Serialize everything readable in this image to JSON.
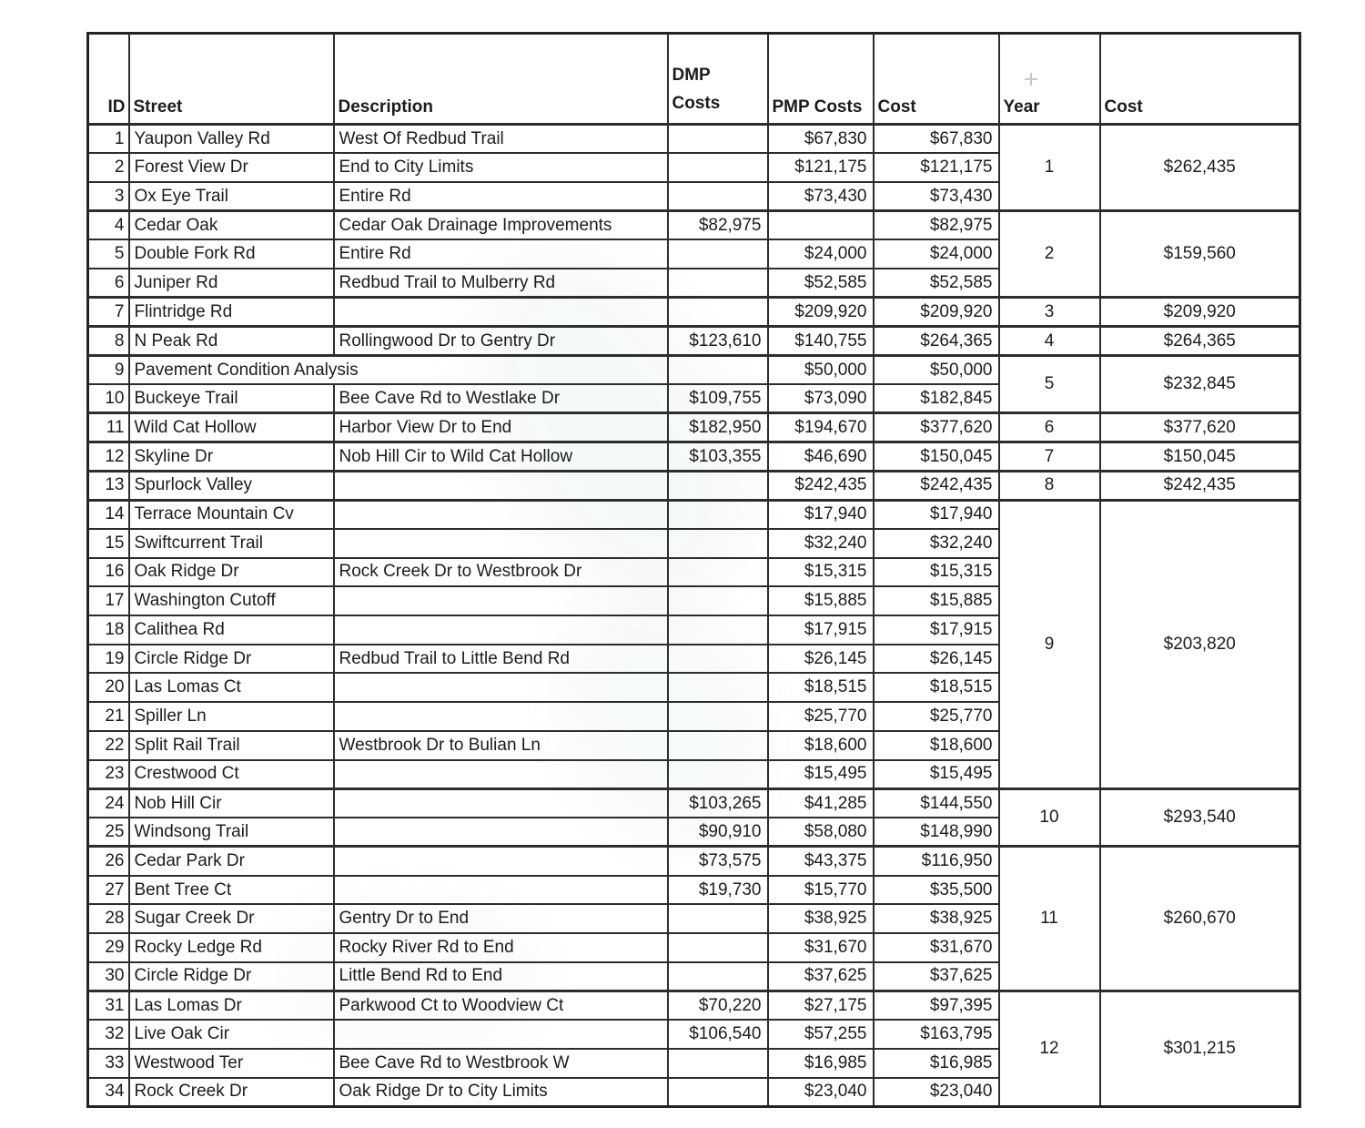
{
  "colors": {
    "background": "#ffffff",
    "border": "#2d2d2d",
    "text": "#1c1c1c",
    "faded_text": "#8f9193"
  },
  "table": {
    "headers": {
      "id": "ID",
      "street": "Street",
      "description": "Description",
      "dmp": "DMP Costs",
      "pmp": "PMP Costs",
      "cost": "Cost",
      "year": "Year",
      "year_cost": "Cost"
    },
    "rows": [
      {
        "id": 1,
        "street": "Yaupon Valley Rd",
        "description": "West Of Redbud Trail",
        "dmp": "",
        "pmp": "$67,830",
        "cost": "$67,830"
      },
      {
        "id": 2,
        "street": "Forest View Dr",
        "description": "End to City Limits",
        "dmp": "",
        "pmp": "$121,175",
        "cost": "$121,175"
      },
      {
        "id": 3,
        "street": "Ox Eye Trail",
        "description": "Entire Rd",
        "dmp": "",
        "pmp": "$73,430",
        "cost": "$73,430"
      },
      {
        "id": 4,
        "street": "Cedar Oak",
        "description": "Cedar Oak Drainage Improvements",
        "dmp": "$82,975",
        "pmp": "",
        "cost": "$82,975"
      },
      {
        "id": 5,
        "street": "Double Fork Rd",
        "description": "Entire Rd",
        "dmp": "",
        "pmp": "$24,000",
        "cost": "$24,000",
        "pmp_faded": true
      },
      {
        "id": 6,
        "street": "Juniper Rd",
        "description": "Redbud Trail to Mulberry Rd",
        "dmp": "",
        "pmp": "$52,585",
        "cost": "$52,585"
      },
      {
        "id": 7,
        "street": "Flintridge Rd",
        "description": "",
        "dmp": "",
        "pmp": "$209,920",
        "cost": "$209,920"
      },
      {
        "id": 8,
        "street": "N Peak Rd",
        "description": "Rollingwood Dr to Gentry Dr",
        "dmp": "$123,610",
        "pmp": "$140,755",
        "cost": "$264,365"
      },
      {
        "id": 9,
        "street": "Pavement Condition Analysis",
        "description": "",
        "dmp": "",
        "pmp": "$50,000",
        "cost": "$50,000",
        "merged": true
      },
      {
        "id": 10,
        "street": "Buckeye Trail",
        "description": "Bee Cave Rd to Westlake Dr",
        "dmp": "$109,755",
        "pmp": "$73,090",
        "cost": "$182,845"
      },
      {
        "id": 11,
        "street": "Wild Cat Hollow",
        "description": "Harbor View Dr to End",
        "dmp": "$182,950",
        "pmp": "$194,670",
        "cost": "$377,620",
        "dmp_faded": true
      },
      {
        "id": 12,
        "street": "Skyline Dr",
        "description": "Nob Hill Cir to Wild Cat Hollow",
        "dmp": "$103,355",
        "pmp": "$46,690",
        "cost": "$150,045"
      },
      {
        "id": 13,
        "street": "Spurlock Valley",
        "description": "",
        "dmp": "",
        "pmp": "$242,435",
        "cost": "$242,435"
      },
      {
        "id": 14,
        "street": "Terrace Mountain Cv",
        "description": "",
        "dmp": "",
        "pmp": "$17,940",
        "cost": "$17,940"
      },
      {
        "id": 15,
        "street": "Swiftcurrent Trail",
        "description": "",
        "dmp": "",
        "pmp": "$32,240",
        "cost": "$32,240"
      },
      {
        "id": 16,
        "street": "Oak Ridge Dr",
        "description": "Rock Creek Dr to Westbrook Dr",
        "dmp": "",
        "pmp": "$15,315",
        "cost": "$15,315"
      },
      {
        "id": 17,
        "street": "Washington Cutoff",
        "description": "",
        "dmp": "",
        "pmp": "$15,885",
        "cost": "$15,885"
      },
      {
        "id": 18,
        "street": "Calithea Rd",
        "description": "",
        "dmp": "",
        "pmp": "$17,915",
        "cost": "$17,915"
      },
      {
        "id": 19,
        "street": "Circle Ridge Dr",
        "description": "Redbud Trail to Little Bend Rd",
        "dmp": "",
        "pmp": "$26,145",
        "cost": "$26,145"
      },
      {
        "id": 20,
        "street": "Las Lomas Ct",
        "description": "",
        "dmp": "",
        "pmp": "$18,515",
        "cost": "$18,515"
      },
      {
        "id": 21,
        "street": "Spiller Ln",
        "description": "",
        "dmp": "",
        "pmp": "$25,770",
        "cost": "$25,770"
      },
      {
        "id": 22,
        "street": "Split Rail Trail",
        "description": "Westbrook Dr to Bulian Ln",
        "dmp": "",
        "pmp": "$18,600",
        "cost": "$18,600"
      },
      {
        "id": 23,
        "street": "Crestwood Ct",
        "description": "",
        "dmp": "",
        "pmp": "$15,495",
        "cost": "$15,495"
      },
      {
        "id": 24,
        "street": "Nob Hill Cir",
        "description": "",
        "dmp": "$103,265",
        "pmp": "$41,285",
        "cost": "$144,550"
      },
      {
        "id": 25,
        "street": "Windsong Trail",
        "description": "",
        "dmp": "$90,910",
        "pmp": "$58,080",
        "cost": "$148,990"
      },
      {
        "id": 26,
        "street": "Cedar Park Dr",
        "description": "",
        "dmp": "$73,575",
        "pmp": "$43,375",
        "cost": "$116,950"
      },
      {
        "id": 27,
        "street": "Bent Tree Ct",
        "description": "",
        "dmp": "$19,730",
        "pmp": "$15,770",
        "cost": "$35,500"
      },
      {
        "id": 28,
        "street": "Sugar Creek Dr",
        "description": "Gentry Dr to End",
        "dmp": "",
        "pmp": "$38,925",
        "cost": "$38,925"
      },
      {
        "id": 29,
        "street": "Rocky Ledge Rd",
        "description": "Rocky River Rd to End",
        "dmp": "",
        "pmp": "$31,670",
        "cost": "$31,670"
      },
      {
        "id": 30,
        "street": "Circle Ridge Dr",
        "description": "Little Bend Rd to End",
        "dmp": "",
        "pmp": "$37,625",
        "cost": "$37,625"
      },
      {
        "id": 31,
        "street": "Las Lomas Dr",
        "description": "Parkwood Ct to Woodview Ct",
        "dmp": "$70,220",
        "pmp": "$27,175",
        "cost": "$97,395"
      },
      {
        "id": 32,
        "street": "Live Oak Cir",
        "description": "",
        "dmp": "$106,540",
        "pmp": "$57,255",
        "cost": "$163,795"
      },
      {
        "id": 33,
        "street": "Westwood Ter",
        "description": "Bee Cave Rd to Westbrook W",
        "dmp": "",
        "pmp": "$16,985",
        "cost": "$16,985"
      },
      {
        "id": 34,
        "street": "Rock Creek Dr",
        "description": "Oak Ridge Dr to City Limits",
        "dmp": "",
        "pmp": "$23,040",
        "cost": "$23,040"
      }
    ],
    "year_groups": [
      {
        "year": "1",
        "cost": "$262,435",
        "start": 1,
        "rows": 3
      },
      {
        "year": "2",
        "cost": "$159,560",
        "start": 4,
        "rows": 3
      },
      {
        "year": "3",
        "cost": "$209,920",
        "start": 7,
        "rows": 1
      },
      {
        "year": "4",
        "cost": "$264,365",
        "start": 8,
        "rows": 1
      },
      {
        "year": "5",
        "cost": "$232,845",
        "start": 9,
        "rows": 2
      },
      {
        "year": "6",
        "cost": "$377,620",
        "start": 11,
        "rows": 1
      },
      {
        "year": "7",
        "cost": "$150,045",
        "start": 12,
        "rows": 1
      },
      {
        "year": "8",
        "cost": "$242,435",
        "start": 13,
        "rows": 1
      },
      {
        "year": "9",
        "cost": "$203,820",
        "start": 14,
        "rows": 10
      },
      {
        "year": "10",
        "cost": "$293,540",
        "start": 24,
        "rows": 2
      },
      {
        "year": "11",
        "cost": "$260,670",
        "start": 26,
        "rows": 5
      },
      {
        "year": "12",
        "cost": "$301,215",
        "start": 31,
        "rows": 4
      }
    ]
  }
}
